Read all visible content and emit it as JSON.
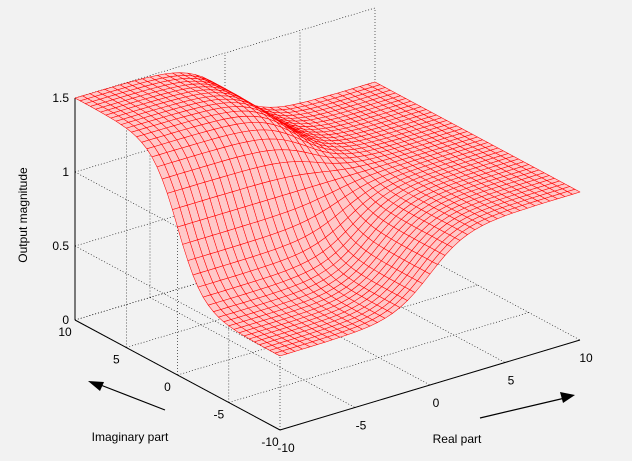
{
  "chart_data": {
    "type": "surface",
    "title": "",
    "zlabel": "Output magnitude",
    "xlabel": "Real part",
    "ylabel": "Imaginary part",
    "x_ticks": [
      "-10",
      "-5",
      "0",
      "5",
      "10"
    ],
    "y_ticks": [
      "-10",
      "-5",
      "0",
      "5",
      "10"
    ],
    "z_ticks": [
      "0",
      "0.5",
      "1",
      "1.5"
    ],
    "xlim": [
      -10,
      10
    ],
    "ylim": [
      -10,
      10
    ],
    "zlim": [
      0,
      1.5
    ],
    "grid": true,
    "mesh_color": "#ff0000",
    "surface_color": "#ffc8c8",
    "grid_resolution": 41,
    "surface_model": {
      "description": "magnitude of output over complex plane; ~1 at large |x| or large |y|, ~1.5 plateau near x<0,y>0 corner, ~0 valley near x<0,y<0 corner",
      "samples": [
        {
          "x": -10,
          "y": 10,
          "z": 1.5
        },
        {
          "x": 10,
          "y": 10,
          "z": 1.0
        },
        {
          "x": -10,
          "y": -10,
          "z": 0.0
        },
        {
          "x": 10,
          "y": -10,
          "z": 1.0
        },
        {
          "x": 0,
          "y": 0,
          "z": 0.75
        }
      ]
    }
  }
}
